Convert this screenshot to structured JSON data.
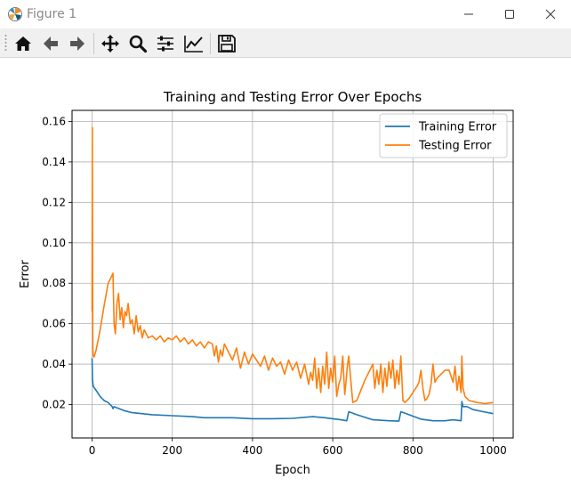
{
  "window": {
    "title": "Figure 1",
    "controls": {
      "minimize": "minimize",
      "maximize": "maximize",
      "close": "close"
    }
  },
  "toolbar": {
    "tools": [
      {
        "name": "home",
        "icon": "home-icon"
      },
      {
        "name": "back",
        "icon": "arrow-left-icon"
      },
      {
        "name": "forward",
        "icon": "arrow-right-icon"
      },
      {
        "name": "pan",
        "icon": "move-icon"
      },
      {
        "name": "zoom",
        "icon": "magnifier-icon"
      },
      {
        "name": "subplots",
        "icon": "sliders-icon"
      },
      {
        "name": "edit-axis",
        "icon": "chart-line-icon"
      },
      {
        "name": "save",
        "icon": "floppy-disk-icon"
      }
    ]
  },
  "colors": {
    "training": "#1f77b4",
    "testing": "#ff7f0e",
    "grid": "#b0b0b0",
    "axis": "#000000"
  },
  "chart_data": {
    "type": "line",
    "title": "Training and Testing Error Over Epochs",
    "xlabel": "Epoch",
    "ylabel": "Error",
    "xlim": [
      -50,
      1050
    ],
    "ylim": [
      0.0035,
      0.1655
    ],
    "xticks": [
      0,
      200,
      400,
      600,
      800,
      1000
    ],
    "yticks": [
      0.02,
      0.04,
      0.06,
      0.08,
      0.1,
      0.12,
      0.14,
      0.16
    ],
    "ytick_labels": [
      "0.02",
      "0.04",
      "0.06",
      "0.08",
      "0.10",
      "0.12",
      "0.14",
      "0.16"
    ],
    "grid": true,
    "legend": {
      "placement": "top-right"
    },
    "series": [
      {
        "name": "Training Error",
        "color": "#1f77b4",
        "x": [
          0,
          1,
          3,
          10,
          20,
          30,
          40,
          50,
          52,
          55,
          60,
          80,
          100,
          150,
          200,
          250,
          280,
          300,
          350,
          400,
          450,
          500,
          550,
          580,
          600,
          620,
          635,
          640,
          660,
          700,
          740,
          765,
          770,
          790,
          820,
          850,
          880,
          900,
          920,
          922,
          925,
          935,
          950,
          975,
          1000
        ],
        "y": [
          0.043,
          0.032,
          0.029,
          0.027,
          0.024,
          0.022,
          0.021,
          0.019,
          0.018,
          0.019,
          0.0185,
          0.017,
          0.016,
          0.015,
          0.0145,
          0.014,
          0.0135,
          0.0135,
          0.0135,
          0.013,
          0.013,
          0.0132,
          0.014,
          0.0135,
          0.013,
          0.0125,
          0.012,
          0.0165,
          0.015,
          0.0125,
          0.012,
          0.0118,
          0.0165,
          0.015,
          0.0128,
          0.012,
          0.012,
          0.0125,
          0.012,
          0.0215,
          0.019,
          0.019,
          0.0175,
          0.0165,
          0.0155
        ]
      },
      {
        "name": "Testing Error",
        "color": "#ff7f0e",
        "x": [
          0,
          0.5,
          1,
          1.5,
          2,
          3,
          5,
          10,
          20,
          30,
          40,
          50,
          52,
          55,
          58,
          62,
          66,
          70,
          74,
          78,
          82,
          86,
          90,
          95,
          100,
          105,
          110,
          115,
          120,
          125,
          130,
          140,
          150,
          160,
          170,
          180,
          190,
          200,
          210,
          220,
          230,
          240,
          250,
          260,
          270,
          280,
          290,
          300,
          305,
          310,
          315,
          320,
          325,
          330,
          340,
          350,
          360,
          370,
          380,
          390,
          400,
          410,
          420,
          430,
          440,
          450,
          460,
          470,
          480,
          490,
          500,
          510,
          520,
          530,
          540,
          545,
          550,
          555,
          560,
          565,
          570,
          575,
          580,
          585,
          590,
          595,
          600,
          605,
          610,
          615,
          620,
          625,
          630,
          633,
          636,
          640,
          650,
          660,
          670,
          680,
          690,
          700,
          705,
          710,
          715,
          720,
          725,
          730,
          735,
          740,
          745,
          750,
          755,
          760,
          765,
          770,
          775,
          780,
          790,
          800,
          810,
          815,
          820,
          825,
          830,
          835,
          840,
          845,
          850,
          855,
          860,
          870,
          880,
          890,
          900,
          905,
          910,
          915,
          920,
          922,
          925,
          930,
          940,
          960,
          980,
          1000
        ],
        "y": [
          0.066,
          0.157,
          0.112,
          0.07,
          0.047,
          0.044,
          0.0435,
          0.047,
          0.057,
          0.069,
          0.08,
          0.084,
          0.085,
          0.06,
          0.055,
          0.07,
          0.075,
          0.062,
          0.068,
          0.058,
          0.066,
          0.064,
          0.07,
          0.06,
          0.062,
          0.055,
          0.064,
          0.056,
          0.059,
          0.053,
          0.057,
          0.053,
          0.054,
          0.052,
          0.054,
          0.051,
          0.053,
          0.052,
          0.054,
          0.051,
          0.053,
          0.05,
          0.052,
          0.049,
          0.051,
          0.048,
          0.051,
          0.05,
          0.044,
          0.049,
          0.041,
          0.047,
          0.044,
          0.05,
          0.046,
          0.042,
          0.048,
          0.038,
          0.046,
          0.04,
          0.045,
          0.042,
          0.039,
          0.044,
          0.037,
          0.043,
          0.039,
          0.041,
          0.035,
          0.042,
          0.037,
          0.041,
          0.033,
          0.04,
          0.03,
          0.036,
          0.032,
          0.043,
          0.028,
          0.038,
          0.026,
          0.039,
          0.03,
          0.046,
          0.028,
          0.038,
          0.031,
          0.044,
          0.024,
          0.03,
          0.033,
          0.044,
          0.025,
          0.031,
          0.038,
          0.044,
          0.021,
          0.022,
          0.027,
          0.032,
          0.036,
          0.04,
          0.028,
          0.037,
          0.03,
          0.04,
          0.026,
          0.038,
          0.029,
          0.041,
          0.033,
          0.042,
          0.028,
          0.037,
          0.03,
          0.044,
          0.022,
          0.021,
          0.023,
          0.026,
          0.029,
          0.031,
          0.037,
          0.028,
          0.022,
          0.023,
          0.025,
          0.03,
          0.04,
          0.031,
          0.033,
          0.035,
          0.037,
          0.037,
          0.031,
          0.039,
          0.027,
          0.034,
          0.026,
          0.044,
          0.028,
          0.024,
          0.022,
          0.021,
          0.0205,
          0.021
        ]
      }
    ]
  }
}
